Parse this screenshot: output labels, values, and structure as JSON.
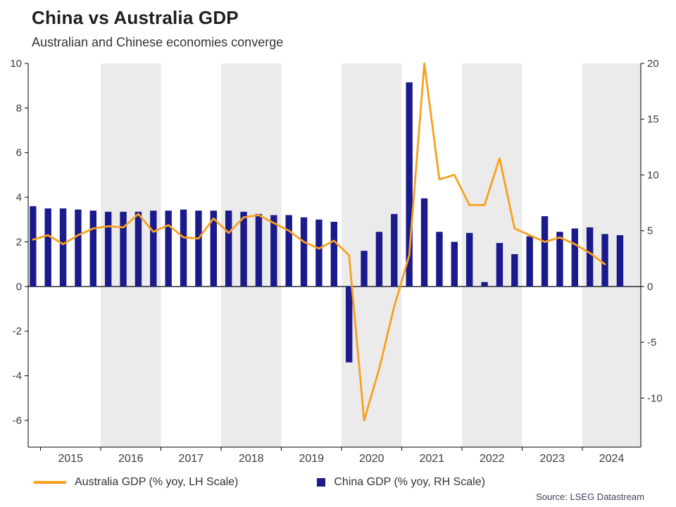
{
  "header": {
    "title": "China vs Australia GDP",
    "subtitle": "Australian and Chinese economies converge"
  },
  "legend": {
    "australia": {
      "label": "Australia GDP (% yoy, LH Scale)"
    },
    "china": {
      "label": "China GDP (% yoy, RH Scale)"
    }
  },
  "source": "Source: LSEG Datastream",
  "colors": {
    "australia_line": "#F8A01E",
    "china_bar": "#1A1A8C",
    "band_shade": "#EBEBEB",
    "axis": "#000000",
    "tick_text": "#3c3c3c"
  },
  "chart_data": {
    "type": "combo_bar_line_dual_axis",
    "x_unit": "quarter",
    "quarters": [
      "2014 Q4",
      "2015 Q1",
      "2015 Q2",
      "2015 Q3",
      "2015 Q4",
      "2016 Q1",
      "2016 Q2",
      "2016 Q3",
      "2016 Q4",
      "2017 Q1",
      "2017 Q2",
      "2017 Q3",
      "2017 Q4",
      "2018 Q1",
      "2018 Q2",
      "2018 Q3",
      "2018 Q4",
      "2019 Q1",
      "2019 Q2",
      "2019 Q3",
      "2019 Q4",
      "2020 Q1",
      "2020 Q2",
      "2020 Q3",
      "2020 Q4",
      "2021 Q1",
      "2021 Q2",
      "2021 Q3",
      "2021 Q4",
      "2022 Q1",
      "2022 Q2",
      "2022 Q3",
      "2022 Q4",
      "2023 Q1",
      "2023 Q2",
      "2023 Q3",
      "2023 Q4",
      "2024 Q1",
      "2024 Q2",
      "2024 Q3"
    ],
    "series": [
      {
        "name": "Australia GDP (% yoy, LH Scale)",
        "type": "line",
        "axis": "left",
        "values": [
          2.1,
          2.3,
          1.9,
          2.3,
          2.6,
          2.7,
          2.65,
          3.25,
          2.45,
          2.75,
          2.2,
          2.15,
          3.05,
          2.4,
          3.1,
          3.2,
          2.85,
          2.5,
          2.0,
          1.7,
          2.05,
          1.4,
          -6.0,
          -3.7,
          -0.9,
          1.4,
          10.0,
          4.8,
          5.0,
          3.65,
          3.65,
          5.75,
          2.6,
          2.3,
          2.0,
          2.2,
          1.9,
          1.5,
          1.0,
          null
        ]
      },
      {
        "name": "China GDP (% yoy, RH Scale)",
        "type": "bar",
        "axis": "right",
        "values": [
          7.2,
          7.0,
          7.0,
          6.9,
          6.8,
          6.7,
          6.7,
          6.7,
          6.8,
          6.8,
          6.9,
          6.8,
          6.8,
          6.8,
          6.7,
          6.5,
          6.4,
          6.4,
          6.2,
          6.0,
          5.8,
          -6.8,
          3.2,
          4.9,
          6.5,
          18.3,
          7.9,
          4.9,
          4.0,
          4.8,
          0.4,
          3.9,
          2.9,
          4.5,
          6.3,
          4.9,
          5.2,
          5.3,
          4.7,
          4.6
        ]
      }
    ],
    "left_axis": {
      "ticks": [
        10,
        8,
        6,
        4,
        2,
        0,
        -2,
        -4,
        -6
      ],
      "range": [
        -7.2,
        10
      ]
    },
    "right_axis": {
      "ticks": [
        20,
        15,
        10,
        5,
        0,
        -5,
        -10
      ],
      "range": [
        -14.4,
        20
      ]
    },
    "years": [
      {
        "label": "2015",
        "shaded": false
      },
      {
        "label": "2016",
        "shaded": true
      },
      {
        "label": "2017",
        "shaded": false
      },
      {
        "label": "2018",
        "shaded": true
      },
      {
        "label": "2019",
        "shaded": false
      },
      {
        "label": "2020",
        "shaded": true
      },
      {
        "label": "2021",
        "shaded": false
      },
      {
        "label": "2022",
        "shaded": true
      },
      {
        "label": "2023",
        "shaded": false
      },
      {
        "label": "2024",
        "shaded": true
      }
    ],
    "grid": "off",
    "legend_position": "bottom"
  }
}
